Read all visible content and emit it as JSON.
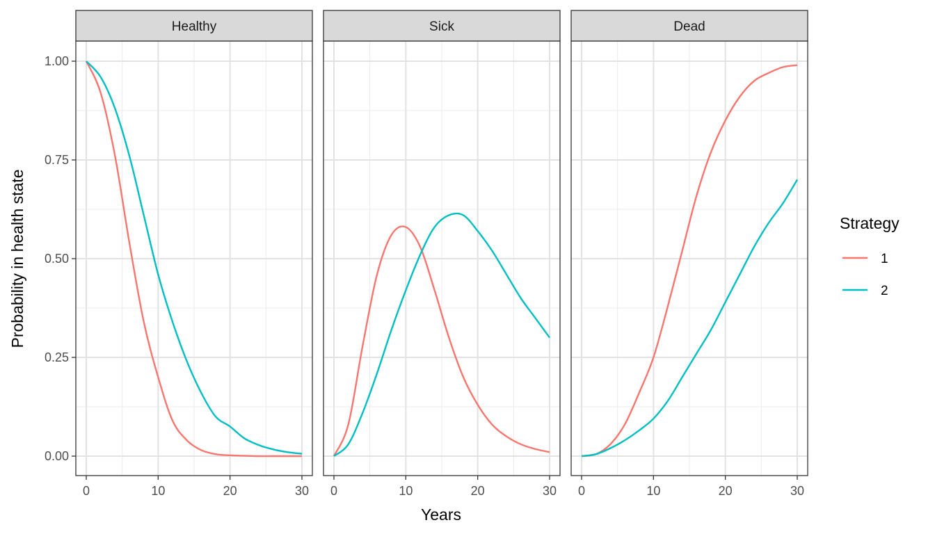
{
  "chart_data": {
    "type": "line",
    "ylabel": "Probability in health state",
    "xlabel": "Years",
    "xlim": [
      0,
      30
    ],
    "ylim": [
      0,
      1
    ],
    "x_ticks": [
      0,
      10,
      20,
      30
    ],
    "y_ticks": [
      0,
      0.25,
      0.5,
      0.75,
      1
    ],
    "y_tick_labels": [
      "0.00",
      "0.25",
      "0.50",
      "0.75",
      "1.00"
    ],
    "grid": true,
    "legend": {
      "title": "Strategy",
      "placement": "right",
      "entries": [
        {
          "label": "1",
          "color": "#F8766D"
        },
        {
          "label": "2",
          "color": "#00BFC4"
        }
      ]
    },
    "x": [
      0,
      2,
      4,
      6,
      8,
      10,
      12,
      14,
      16,
      18,
      20,
      22,
      24,
      26,
      28,
      30
    ],
    "panels": [
      {
        "title": "Healthy",
        "series": [
          {
            "name": "1",
            "color": "#F8766D",
            "values": [
              1.0,
              0.92,
              0.76,
              0.54,
              0.34,
              0.2,
              0.09,
              0.04,
              0.015,
              0.005,
              0.002,
              0.001,
              0.0,
              0.0,
              0.0,
              0.0
            ]
          },
          {
            "name": "2",
            "color": "#00BFC4",
            "values": [
              1.0,
              0.96,
              0.88,
              0.76,
              0.61,
              0.46,
              0.34,
              0.24,
              0.16,
              0.1,
              0.075,
              0.045,
              0.028,
              0.017,
              0.01,
              0.006
            ]
          }
        ]
      },
      {
        "title": "Sick",
        "series": [
          {
            "name": "1",
            "color": "#F8766D",
            "values": [
              0.0,
              0.08,
              0.28,
              0.46,
              0.56,
              0.58,
              0.53,
              0.42,
              0.3,
              0.2,
              0.13,
              0.08,
              0.05,
              0.03,
              0.018,
              0.01
            ]
          },
          {
            "name": "2",
            "color": "#00BFC4",
            "values": [
              0.0,
              0.03,
              0.11,
              0.21,
              0.32,
              0.42,
              0.51,
              0.58,
              0.61,
              0.61,
              0.57,
              0.52,
              0.46,
              0.4,
              0.35,
              0.3
            ]
          }
        ]
      },
      {
        "title": "Dead",
        "series": [
          {
            "name": "1",
            "color": "#F8766D",
            "values": [
              0.0,
              0.005,
              0.03,
              0.08,
              0.16,
              0.25,
              0.38,
              0.52,
              0.66,
              0.77,
              0.85,
              0.91,
              0.95,
              0.97,
              0.985,
              0.99
            ]
          },
          {
            "name": "2",
            "color": "#00BFC4",
            "values": [
              0.0,
              0.005,
              0.02,
              0.04,
              0.065,
              0.095,
              0.14,
              0.2,
              0.26,
              0.32,
              0.39,
              0.46,
              0.53,
              0.59,
              0.64,
              0.7
            ]
          }
        ]
      }
    ]
  }
}
